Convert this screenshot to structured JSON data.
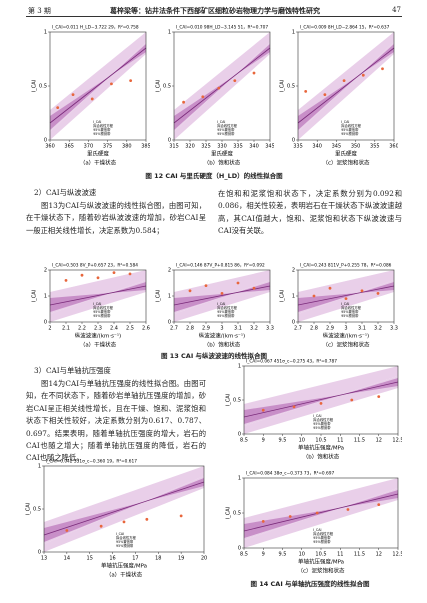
{
  "header": {
    "issue": "第 3 期",
    "running_title": "葛梓梁等：钻井法条件下西部矿区细粒砂岩物理力学与磨蚀特性研究",
    "page": "47"
  },
  "legend": [
    "I_CAI",
    "拟合线性方程",
    "95%置信带",
    "95%预测带"
  ],
  "figure12": {
    "caption": "图 12  CAI 与里氏硬度（H_LD）的线性拟合图",
    "panels": [
      {
        "caption": "（a）干燥状态",
        "equation": "I_CAI=0.011 H_LD−3.722 29，R²=0.758",
        "xlabel": "里氏硬度",
        "ylabel": "I_CAI",
        "xticks": [
          360,
          365,
          370,
          375,
          380,
          385
        ],
        "yticks": [
          0,
          0.5,
          1
        ],
        "points": {
          "x": [
            362,
            366,
            371,
            376,
            381
          ],
          "y": [
            0.3,
            0.42,
            0.38,
            0.52,
            0.55
          ]
        }
      },
      {
        "caption": "（b）饱和状态",
        "equation": "I_CAI=0.010 98H_LD−3.145 51，R²=0.707",
        "xlabel": "里氏硬度",
        "ylabel": "I_CAI",
        "xticks": [
          315,
          320,
          325,
          330,
          335,
          340,
          345
        ],
        "yticks": [
          0,
          0.5,
          1
        ],
        "points": {
          "x": [
            318,
            324,
            329,
            334,
            340
          ],
          "y": [
            0.35,
            0.4,
            0.48,
            0.55,
            0.62
          ]
        }
      },
      {
        "caption": "（c）泥浆饱和状态",
        "equation": "I_CAI=0.009 8H_LD−2.864 15，R²=0.637",
        "xlabel": "里氏硬度",
        "ylabel": "I_CAI",
        "xticks": [
          335,
          340,
          345,
          350,
          355,
          360
        ],
        "yticks": [
          0,
          0.5,
          1
        ],
        "points": {
          "x": [
            337,
            342,
            347,
            352,
            357
          ],
          "y": [
            0.45,
            0.42,
            0.55,
            0.6,
            0.66
          ]
        }
      }
    ]
  },
  "section2": {
    "heading": "2）CAI与纵波波速",
    "left": "图13为CAI与纵波波速的线性拟合图，由图可知，在干燥状态下，随着砂岩纵波波速的增加，砂岩CAI呈一般正相关线性增长，决定系数为0.584；",
    "right": "在饱和和泥浆饱和状态下，决定系数分别为0.092和0.086，相关性较差，表明岩石在干燥状态下纵波波速越高，其CAI值越大，饱和、泥浆饱和状态下纵波波速与CAI没有关联。"
  },
  "figure13": {
    "caption": "图 13  CAI 与纵波波速的线性拟合图",
    "panels": [
      {
        "caption": "（a）干燥状态",
        "equation": "I_CAI=0.503 8V_P+0.657 23，R²=0.584",
        "xlabel": "纵波波速/(km·s⁻¹)",
        "ylabel": "I_CAI",
        "xticks": [
          2.0,
          2.1,
          2.2,
          2.3,
          2.4,
          2.5,
          2.6
        ],
        "yticks": [
          0,
          1,
          2
        ],
        "points": {
          "x": [
            2.1,
            2.2,
            2.3,
            2.4,
            2.5
          ],
          "y": [
            1.6,
            1.8,
            1.7,
            1.9,
            1.85
          ]
        }
      },
      {
        "caption": "（b）饱和状态",
        "equation": "I_CAI=0.146 87V_P+0.815 86，R²=0.092",
        "xlabel": "纵波波速/(km·s⁻¹)",
        "ylabel": "I_CAI",
        "xticks": [
          2.7,
          2.8,
          2.9,
          3.0,
          3.1,
          3.2,
          3.3
        ],
        "yticks": [
          0,
          1,
          2
        ],
        "points": {
          "x": [
            2.8,
            2.9,
            3.0,
            3.1,
            3.2
          ],
          "y": [
            1.2,
            1.4,
            1.1,
            1.5,
            1.3
          ]
        }
      },
      {
        "caption": "（c）泥浆饱和状态",
        "equation": "I_CAI=0.243 811V_P+0.255 78，R²=0.086",
        "xlabel": "纵波波速/(km·s⁻¹)",
        "ylabel": "I_CAI",
        "xticks": [
          2.7,
          2.8,
          2.9,
          3.0,
          3.1,
          3.2,
          3.3
        ],
        "yticks": [
          0,
          1,
          2
        ],
        "points": {
          "x": [
            2.8,
            2.9,
            3.0,
            3.1,
            3.2
          ],
          "y": [
            1.0,
            1.3,
            0.9,
            1.2,
            1.1
          ]
        }
      }
    ]
  },
  "section3": {
    "heading": "3）CAI与单轴抗压强度",
    "text": "图14为CAI与单轴抗压强度的线性拟合图。由图可知，在不同状态下，随着砂岩单轴抗压强度的增加，砂岩CAI呈正相关线性增长，且在干燥、饱和、泥浆饱和状态下相关性较好，决定系数分别为0.617、0.787、0.697。结果表明，随着单轴抗压强度的增大，岩石的CAI也随之增大；随着单轴抗压强度的降低，岩石的CAI也随之降低。"
  },
  "figure14": {
    "caption": "图 14  CAI 与单轴抗压强度的线性拟合图",
    "panels": [
      {
        "caption": "（a）干燥状态",
        "equation": "I_CAI=0.042 331σ_c−0.360 19，R²=0.617",
        "xlabel": "单轴抗压强度/MPa",
        "ylabel": "I_CAI",
        "xticks": [
          13,
          14,
          15,
          16,
          17,
          18,
          19,
          20
        ],
        "yticks": [
          0,
          0.5,
          1
        ],
        "points": {
          "x": [
            14,
            15.5,
            16.5,
            17.5,
            19
          ],
          "y": [
            0.25,
            0.3,
            0.35,
            0.38,
            0.42
          ]
        }
      },
      {
        "caption": "（b）饱和状态",
        "equation": "I_CAI=0.067 451σ_c−0.275 43，R²=0.787",
        "xlabel": "单轴抗压强度/MPa",
        "ylabel": "I_CAI",
        "xticks": [
          8.5,
          9.0,
          9.5,
          10.0,
          10.5,
          11.0,
          11.5,
          12.0,
          12.5
        ],
        "yticks": [
          0,
          0.5,
          1
        ],
        "points": {
          "x": [
            9,
            9.8,
            10.5,
            11.3,
            12
          ],
          "y": [
            0.35,
            0.4,
            0.45,
            0.5,
            0.55
          ]
        }
      },
      {
        "caption": "（c）泥浆饱和状态",
        "equation": "I_CAI=0.084 38σ_c−0.373 73，R²=0.697",
        "xlabel": "单轴抗压强度/MPa",
        "ylabel": "I_CAI",
        "xticks": [
          8.5,
          9.0,
          9.5,
          10.0,
          10.5,
          11.0,
          11.5,
          12.0,
          12.5
        ],
        "yticks": [
          0,
          0.5,
          1
        ],
        "points": {
          "x": [
            9,
            9.7,
            10.4,
            11.2,
            12
          ],
          "y": [
            0.38,
            0.45,
            0.5,
            0.55,
            0.62
          ]
        }
      }
    ]
  }
}
